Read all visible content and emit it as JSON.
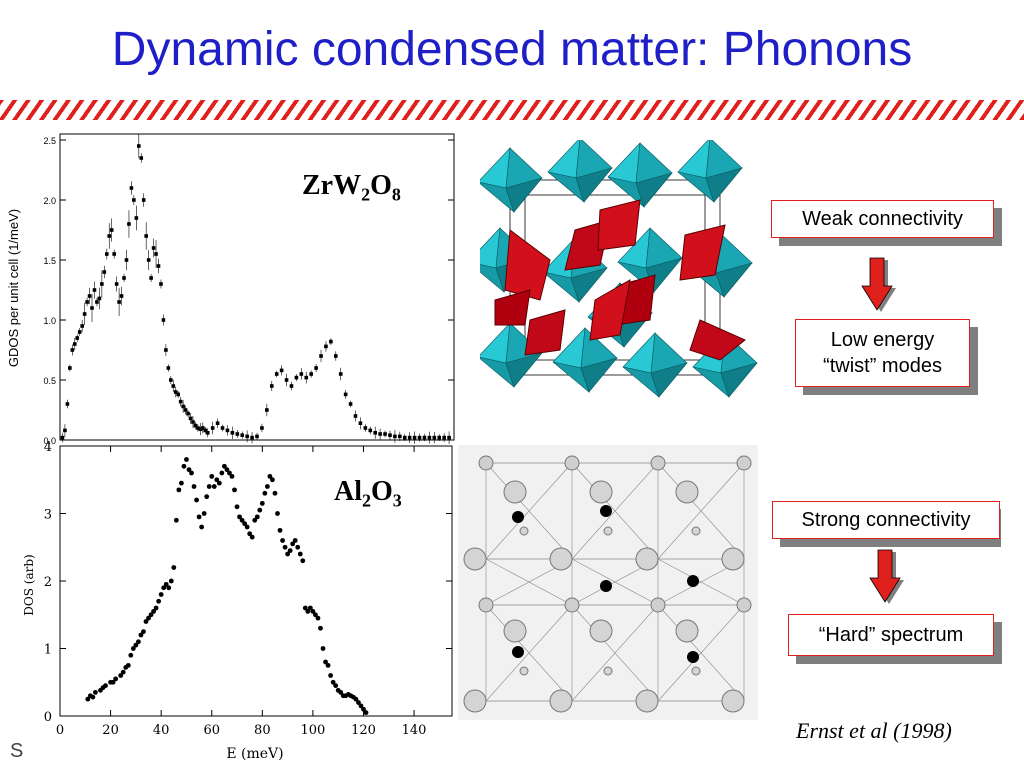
{
  "slide": {
    "title": "Dynamic condensed matter: Phonons",
    "formula1": {
      "base1": "ZrW",
      "sub1": "2",
      "base2": "O",
      "sub2": "8"
    },
    "formula2": {
      "base1": "Al",
      "sub1": "2",
      "base2": "O",
      "sub2": "3"
    },
    "boxes": {
      "weak": "Weak connectivity",
      "low_energy_line1": "Low energy",
      "low_energy_line2": "“twist” modes",
      "strong": "Strong connectivity",
      "hard": "“Hard” spectrum"
    },
    "citation": "Ernst et al (1998)",
    "footer_fragment": "S",
    "colors": {
      "title": "#1f1fc8",
      "hatch": "#e0201c",
      "arrow": "#e0201c",
      "octahedron_cyan": "#23c2cf",
      "tetrahedron_red": "#d2101c"
    }
  },
  "chart_data": [
    {
      "type": "scatter",
      "title": "",
      "xlabel": "",
      "ylabel": "GDOS per unit cell (1/meV)",
      "yticks": [
        "0.0",
        "0.5",
        "1.0",
        "1.5",
        "2.0",
        "2.5"
      ],
      "ylim": [
        0,
        2.55
      ],
      "xlim": [
        0,
        160
      ],
      "error_bars": true,
      "series": [
        {
          "x": [
            1,
            2,
            3,
            4,
            5,
            6,
            7,
            8,
            9,
            10,
            11,
            12,
            13,
            14,
            15,
            16,
            17,
            18,
            19,
            20,
            21,
            22,
            23,
            24,
            25,
            26,
            27,
            28,
            29,
            30,
            31,
            32,
            33,
            34,
            35,
            36,
            37,
            38,
            39,
            40,
            41,
            42,
            43,
            44,
            45,
            46,
            47,
            48,
            49,
            50,
            51,
            52,
            53,
            54,
            55,
            56,
            57,
            58,
            59,
            60,
            62,
            64,
            66,
            68,
            70,
            72,
            74,
            76,
            78,
            80,
            82,
            84,
            86,
            88,
            90,
            92,
            94,
            96,
            98,
            100,
            102,
            104,
            106,
            108,
            110,
            112,
            114,
            116,
            118,
            120,
            122,
            124,
            126,
            128,
            130,
            132,
            134,
            136,
            138,
            140,
            142,
            144,
            146,
            148,
            150,
            152,
            154,
            156,
            158
          ],
          "y": [
            0.02,
            0.08,
            0.3,
            0.6,
            0.75,
            0.8,
            0.85,
            0.9,
            0.95,
            1.05,
            1.15,
            1.2,
            1.1,
            1.25,
            1.15,
            1.18,
            1.3,
            1.4,
            1.55,
            1.7,
            1.75,
            1.55,
            1.3,
            1.15,
            1.2,
            1.35,
            1.5,
            1.8,
            2.1,
            2.0,
            1.85,
            2.45,
            2.35,
            2.0,
            1.7,
            1.5,
            1.35,
            1.6,
            1.55,
            1.45,
            1.3,
            1.0,
            0.75,
            0.6,
            0.5,
            0.45,
            0.4,
            0.38,
            0.32,
            0.28,
            0.25,
            0.22,
            0.18,
            0.15,
            0.12,
            0.1,
            0.09,
            0.1,
            0.08,
            0.06,
            0.1,
            0.14,
            0.1,
            0.08,
            0.06,
            0.05,
            0.04,
            0.03,
            0.02,
            0.03,
            0.1,
            0.25,
            0.45,
            0.55,
            0.58,
            0.5,
            0.45,
            0.52,
            0.55,
            0.52,
            0.55,
            0.6,
            0.7,
            0.78,
            0.82,
            0.7,
            0.55,
            0.38,
            0.3,
            0.2,
            0.14,
            0.1,
            0.08,
            0.06,
            0.05,
            0.05,
            0.04,
            0.03,
            0.03,
            0.02,
            0.02,
            0.02,
            0.02,
            0.02,
            0.02,
            0.02,
            0.02,
            0.02,
            0.02
          ]
        }
      ]
    },
    {
      "type": "scatter",
      "title": "",
      "xlabel": "E (meV)",
      "ylabel": "DOS (arb)",
      "xticks": [
        "0",
        "20",
        "40",
        "60",
        "80",
        "100",
        "120",
        "140"
      ],
      "yticks": [
        "0",
        "1",
        "2",
        "3",
        "4"
      ],
      "xlim": [
        0,
        155
      ],
      "ylim": [
        0,
        4
      ],
      "series": [
        {
          "x": [
            11,
            12,
            13,
            14,
            16,
            17,
            18,
            20,
            21,
            22,
            24,
            25,
            26,
            27,
            28,
            29,
            30,
            31,
            32,
            33,
            34,
            35,
            36,
            37,
            38,
            39,
            40,
            41,
            42,
            43,
            44,
            45,
            46,
            47,
            48,
            49,
            50,
            51,
            52,
            53,
            54,
            55,
            56,
            57,
            58,
            59,
            60,
            61,
            62,
            63,
            64,
            65,
            66,
            67,
            68,
            69,
            70,
            71,
            72,
            73,
            74,
            75,
            76,
            77,
            78,
            79,
            80,
            81,
            82,
            83,
            84,
            85,
            86,
            87,
            88,
            89,
            90,
            91,
            92,
            93,
            94,
            95,
            96,
            97,
            98,
            99,
            100,
            101,
            102,
            103,
            104,
            105,
            106,
            107,
            108,
            109,
            110,
            111,
            112,
            113,
            114,
            115,
            116,
            117,
            118,
            119,
            120,
            121
          ],
          "y": [
            0.25,
            0.3,
            0.28,
            0.35,
            0.38,
            0.42,
            0.45,
            0.5,
            0.5,
            0.55,
            0.6,
            0.65,
            0.72,
            0.75,
            0.9,
            1.0,
            1.05,
            1.1,
            1.2,
            1.25,
            1.4,
            1.45,
            1.5,
            1.55,
            1.6,
            1.7,
            1.8,
            1.9,
            1.95,
            1.9,
            2.0,
            2.2,
            2.9,
            3.35,
            3.45,
            3.7,
            3.8,
            3.65,
            3.6,
            3.4,
            3.2,
            2.95,
            2.8,
            3.0,
            3.25,
            3.4,
            3.55,
            3.4,
            3.5,
            3.45,
            3.6,
            3.7,
            3.65,
            3.6,
            3.55,
            3.35,
            3.1,
            2.95,
            2.9,
            2.85,
            2.8,
            2.7,
            2.65,
            2.9,
            2.95,
            3.05,
            3.15,
            3.3,
            3.4,
            3.55,
            3.5,
            3.3,
            3.0,
            2.75,
            2.6,
            2.5,
            2.4,
            2.45,
            2.55,
            2.6,
            2.5,
            2.4,
            2.3,
            1.6,
            1.55,
            1.6,
            1.55,
            1.5,
            1.45,
            1.3,
            1.0,
            0.8,
            0.75,
            0.6,
            0.5,
            0.45,
            0.38,
            0.35,
            0.3,
            0.3,
            0.32,
            0.3,
            0.28,
            0.25,
            0.2,
            0.15,
            0.1,
            0.05
          ]
        }
      ]
    }
  ]
}
